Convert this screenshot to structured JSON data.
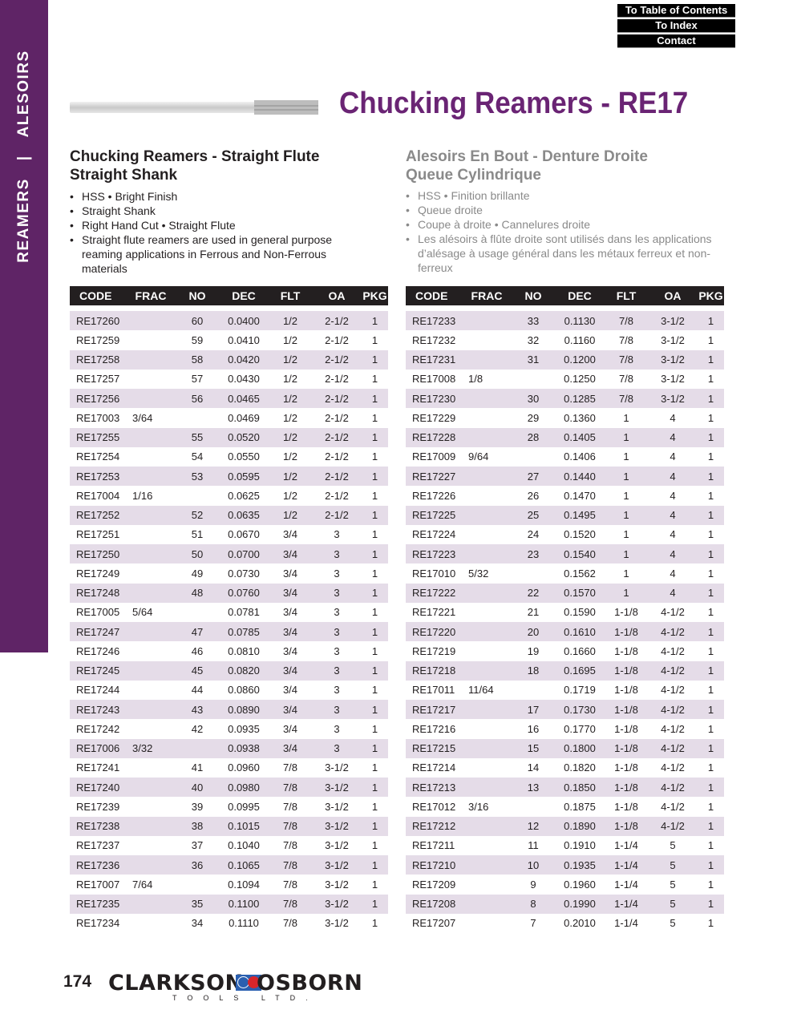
{
  "sidebar": {
    "left_label": "REAMERS",
    "separator": "|",
    "right_label": "ALESOIRS",
    "color": "#5f2466"
  },
  "nav": {
    "toc": "To Table of Contents",
    "index": "To Index",
    "contact": "Contact"
  },
  "title": "Chucking Reamers - RE17",
  "english": {
    "heading_line1": "Chucking Reamers - Straight Flute",
    "heading_line2": "Straight Shank",
    "bullets": [
      "HSS • Bright Finish",
      "Straight Shank",
      "Right Hand Cut • Straight Flute",
      "Straight flute reamers are used in general purpose reaming applications in Ferrous and Non-Ferrous materials"
    ]
  },
  "french": {
    "heading_line1": "Alesoirs En Bout - Denture Droite",
    "heading_line2": "Queue Cylindrique",
    "bullets": [
      "HSS • Finition brillante",
      "Queue droite",
      "Coupe à droite • Cannelures droite",
      "Les alésoirs à flûte droite sont utilisés dans les applications d’alésage à usage général dans les métaux ferreux et non-ferreux"
    ]
  },
  "table_headers": [
    "CODE",
    "FRAC",
    "NO",
    "DEC",
    "FLT",
    "OA",
    "PKG"
  ],
  "left_table": [
    [
      "RE17260",
      "",
      "60",
      "0.0400",
      "1/2",
      "2-1/2",
      "1"
    ],
    [
      "RE17259",
      "",
      "59",
      "0.0410",
      "1/2",
      "2-1/2",
      "1"
    ],
    [
      "RE17258",
      "",
      "58",
      "0.0420",
      "1/2",
      "2-1/2",
      "1"
    ],
    [
      "RE17257",
      "",
      "57",
      "0.0430",
      "1/2",
      "2-1/2",
      "1"
    ],
    [
      "RE17256",
      "",
      "56",
      "0.0465",
      "1/2",
      "2-1/2",
      "1"
    ],
    [
      "RE17003",
      "3/64",
      "",
      "0.0469",
      "1/2",
      "2-1/2",
      "1"
    ],
    [
      "RE17255",
      "",
      "55",
      "0.0520",
      "1/2",
      "2-1/2",
      "1"
    ],
    [
      "RE17254",
      "",
      "54",
      "0.0550",
      "1/2",
      "2-1/2",
      "1"
    ],
    [
      "RE17253",
      "",
      "53",
      "0.0595",
      "1/2",
      "2-1/2",
      "1"
    ],
    [
      "RE17004",
      "1/16",
      "",
      "0.0625",
      "1/2",
      "2-1/2",
      "1"
    ],
    [
      "RE17252",
      "",
      "52",
      "0.0635",
      "1/2",
      "2-1/2",
      "1"
    ],
    [
      "RE17251",
      "",
      "51",
      "0.0670",
      "3/4",
      "3",
      "1"
    ],
    [
      "RE17250",
      "",
      "50",
      "0.0700",
      "3/4",
      "3",
      "1"
    ],
    [
      "RE17249",
      "",
      "49",
      "0.0730",
      "3/4",
      "3",
      "1"
    ],
    [
      "RE17248",
      "",
      "48",
      "0.0760",
      "3/4",
      "3",
      "1"
    ],
    [
      "RE17005",
      "5/64",
      "",
      "0.0781",
      "3/4",
      "3",
      "1"
    ],
    [
      "RE17247",
      "",
      "47",
      "0.0785",
      "3/4",
      "3",
      "1"
    ],
    [
      "RE17246",
      "",
      "46",
      "0.0810",
      "3/4",
      "3",
      "1"
    ],
    [
      "RE17245",
      "",
      "45",
      "0.0820",
      "3/4",
      "3",
      "1"
    ],
    [
      "RE17244",
      "",
      "44",
      "0.0860",
      "3/4",
      "3",
      "1"
    ],
    [
      "RE17243",
      "",
      "43",
      "0.0890",
      "3/4",
      "3",
      "1"
    ],
    [
      "RE17242",
      "",
      "42",
      "0.0935",
      "3/4",
      "3",
      "1"
    ],
    [
      "RE17006",
      "3/32",
      "",
      "0.0938",
      "3/4",
      "3",
      "1"
    ],
    [
      "RE17241",
      "",
      "41",
      "0.0960",
      "7/8",
      "3-1/2",
      "1"
    ],
    [
      "RE17240",
      "",
      "40",
      "0.0980",
      "7/8",
      "3-1/2",
      "1"
    ],
    [
      "RE17239",
      "",
      "39",
      "0.0995",
      "7/8",
      "3-1/2",
      "1"
    ],
    [
      "RE17238",
      "",
      "38",
      "0.1015",
      "7/8",
      "3-1/2",
      "1"
    ],
    [
      "RE17237",
      "",
      "37",
      "0.1040",
      "7/8",
      "3-1/2",
      "1"
    ],
    [
      "RE17236",
      "",
      "36",
      "0.1065",
      "7/8",
      "3-1/2",
      "1"
    ],
    [
      "RE17007",
      "7/64",
      "",
      "0.1094",
      "7/8",
      "3-1/2",
      "1"
    ],
    [
      "RE17235",
      "",
      "35",
      "0.1100",
      "7/8",
      "3-1/2",
      "1"
    ],
    [
      "RE17234",
      "",
      "34",
      "0.1110",
      "7/8",
      "3-1/2",
      "1"
    ]
  ],
  "right_table": [
    [
      "RE17233",
      "",
      "33",
      "0.1130",
      "7/8",
      "3-1/2",
      "1"
    ],
    [
      "RE17232",
      "",
      "32",
      "0.1160",
      "7/8",
      "3-1/2",
      "1"
    ],
    [
      "RE17231",
      "",
      "31",
      "0.1200",
      "7/8",
      "3-1/2",
      "1"
    ],
    [
      "RE17008",
      "1/8",
      "",
      "0.1250",
      "7/8",
      "3-1/2",
      "1"
    ],
    [
      "RE17230",
      "",
      "30",
      "0.1285",
      "7/8",
      "3-1/2",
      "1"
    ],
    [
      "RE17229",
      "",
      "29",
      "0.1360",
      "1",
      "4",
      "1"
    ],
    [
      "RE17228",
      "",
      "28",
      "0.1405",
      "1",
      "4",
      "1"
    ],
    [
      "RE17009",
      "9/64",
      "",
      "0.1406",
      "1",
      "4",
      "1"
    ],
    [
      "RE17227",
      "",
      "27",
      "0.1440",
      "1",
      "4",
      "1"
    ],
    [
      "RE17226",
      "",
      "26",
      "0.1470",
      "1",
      "4",
      "1"
    ],
    [
      "RE17225",
      "",
      "25",
      "0.1495",
      "1",
      "4",
      "1"
    ],
    [
      "RE17224",
      "",
      "24",
      "0.1520",
      "1",
      "4",
      "1"
    ],
    [
      "RE17223",
      "",
      "23",
      "0.1540",
      "1",
      "4",
      "1"
    ],
    [
      "RE17010",
      "5/32",
      "",
      "0.1562",
      "1",
      "4",
      "1"
    ],
    [
      "RE17222",
      "",
      "22",
      "0.1570",
      "1",
      "4",
      "1"
    ],
    [
      "RE17221",
      "",
      "21",
      "0.1590",
      "1-1/8",
      "4-1/2",
      "1"
    ],
    [
      "RE17220",
      "",
      "20",
      "0.1610",
      "1-1/8",
      "4-1/2",
      "1"
    ],
    [
      "RE17219",
      "",
      "19",
      "0.1660",
      "1-1/8",
      "4-1/2",
      "1"
    ],
    [
      "RE17218",
      "",
      "18",
      "0.1695",
      "1-1/8",
      "4-1/2",
      "1"
    ],
    [
      "RE17011",
      "11/64",
      "",
      "0.1719",
      "1-1/8",
      "4-1/2",
      "1"
    ],
    [
      "RE17217",
      "",
      "17",
      "0.1730",
      "1-1/8",
      "4-1/2",
      "1"
    ],
    [
      "RE17216",
      "",
      "16",
      "0.1770",
      "1-1/8",
      "4-1/2",
      "1"
    ],
    [
      "RE17215",
      "",
      "15",
      "0.1800",
      "1-1/8",
      "4-1/2",
      "1"
    ],
    [
      "RE17214",
      "",
      "14",
      "0.1820",
      "1-1/8",
      "4-1/2",
      "1"
    ],
    [
      "RE17213",
      "",
      "13",
      "0.1850",
      "1-1/8",
      "4-1/2",
      "1"
    ],
    [
      "RE17012",
      "3/16",
      "",
      "0.1875",
      "1-1/8",
      "4-1/2",
      "1"
    ],
    [
      "RE17212",
      "",
      "12",
      "0.1890",
      "1-1/8",
      "4-1/2",
      "1"
    ],
    [
      "RE17211",
      "",
      "11",
      "0.1910",
      "1-1/4",
      "5",
      "1"
    ],
    [
      "RE17210",
      "",
      "10",
      "0.1935",
      "1-1/4",
      "5",
      "1"
    ],
    [
      "RE17209",
      "",
      "9",
      "0.1960",
      "1-1/4",
      "5",
      "1"
    ],
    [
      "RE17208",
      "",
      "8",
      "0.1990",
      "1-1/4",
      "5",
      "1"
    ],
    [
      "RE17207",
      "",
      "7",
      "0.2010",
      "1-1/4",
      "5",
      "1"
    ]
  ],
  "footer": {
    "page_number": "174",
    "logo_word1": "CLARKSON",
    "logo_word2": "OSBORN",
    "logo_sub": "TOOLS LTD."
  },
  "colors": {
    "accent": "#6a2474",
    "stripe": "#e5dce8",
    "header_bg": "#231f20"
  }
}
